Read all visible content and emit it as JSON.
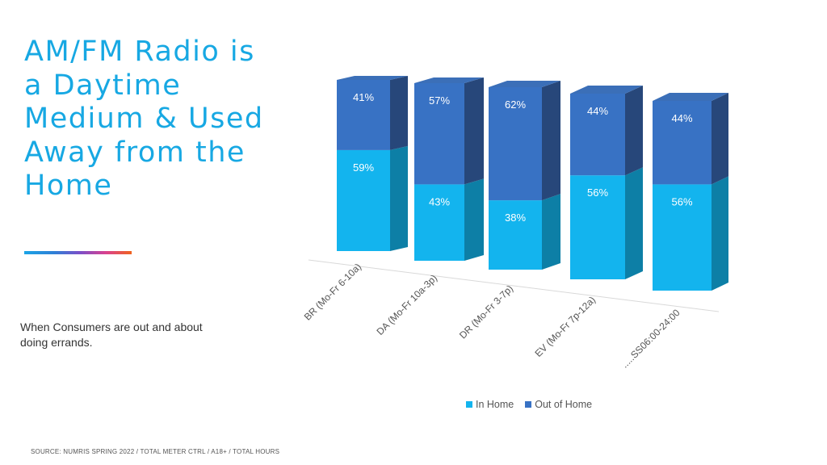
{
  "title_lines": [
    "AM/FM Radio is",
    "a Daytime",
    "Medium & Used",
    "Away from the",
    "Home"
  ],
  "subtitle": "When Consumers are out and about doing errands.",
  "source": "SOURCE: NUMRIS SPRING 2022 / TOTAL METER CTRL / A18+ / TOTAL HOURS",
  "chart_data": {
    "type": "bar",
    "stacked": true,
    "style": "3d",
    "categories": [
      "BR (Mo-Fr 6-10a)",
      "DA (Mo-Fr 10a-3p)",
      "DR (Mo-Fr 3-7p)",
      "EV (Mo-Fr 7p-12a)",
      ".....SS06:00-24:00"
    ],
    "series": [
      {
        "name": "In Home",
        "values": [
          59,
          43,
          38,
          56,
          56
        ],
        "labels": [
          "59%",
          "43%",
          "38%",
          "56%",
          "56%"
        ],
        "color": "#13b4ee"
      },
      {
        "name": "Out of Home",
        "values": [
          41,
          57,
          62,
          44,
          44
        ],
        "labels": [
          "41%",
          "57%",
          "62%",
          "44%",
          "44%"
        ],
        "color": "#3872c4"
      }
    ],
    "ylim": [
      0,
      100
    ],
    "legend_position": "bottom",
    "grid": false
  }
}
